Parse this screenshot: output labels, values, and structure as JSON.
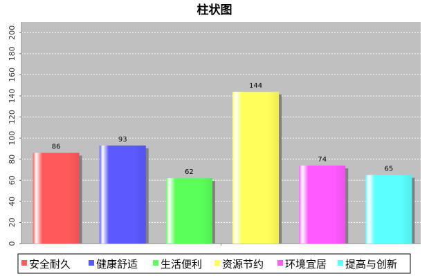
{
  "chart_data": {
    "type": "bar",
    "title": "柱状图",
    "categories": [
      "安全耐久",
      "健康舒适",
      "生活便利",
      "资源节约",
      "环境宜居",
      "提高与创新"
    ],
    "values": [
      86,
      93,
      62,
      144,
      74,
      65
    ],
    "colors": [
      "#ff5a5a",
      "#5a5aff",
      "#5aff5a",
      "#ffff5a",
      "#ff5aff",
      "#5affff"
    ],
    "ylim": [
      0,
      210
    ],
    "yticks": [
      0,
      20,
      40,
      60,
      80,
      100,
      120,
      140,
      160,
      180,
      200
    ],
    "xlabel": "",
    "ylabel": "",
    "grid": true,
    "plot_background": "#c0c0c0",
    "legend_position": "bottom"
  }
}
